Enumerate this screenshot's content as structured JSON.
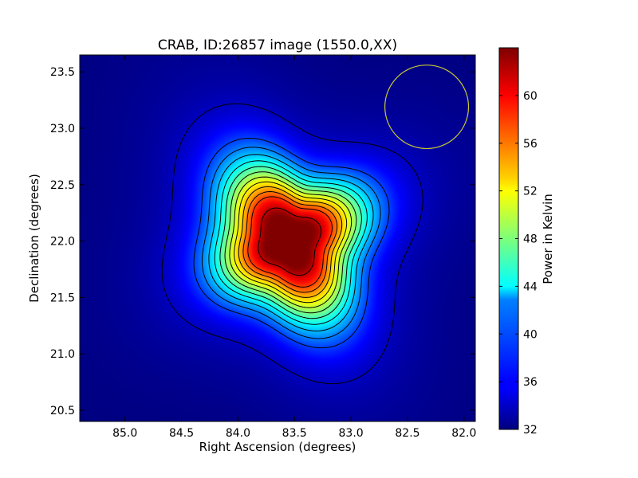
{
  "chart_data": {
    "type": "heatmap",
    "title": "CRAB, ID:26857 image (1550.0,XX)",
    "xlabel": "Right Ascension (degrees)",
    "ylabel": "Declination (degrees)",
    "xlim": [
      85.4,
      81.9
    ],
    "ylim": [
      20.4,
      23.65
    ],
    "x_ticks": [
      "85.0",
      "84.5",
      "84.0",
      "83.5",
      "83.0",
      "82.5",
      "82.0"
    ],
    "x_tick_values": [
      85.0,
      84.5,
      84.0,
      83.5,
      83.0,
      82.5,
      82.0
    ],
    "y_ticks": [
      "20.5",
      "21.0",
      "21.5",
      "22.0",
      "22.5",
      "23.0",
      "23.5"
    ],
    "y_tick_values": [
      20.5,
      21.0,
      21.5,
      22.0,
      22.5,
      23.0,
      23.5
    ],
    "colorbar": {
      "label": "Power in Kelvin",
      "range": [
        32,
        64
      ],
      "ticks": [
        "32",
        "36",
        "40",
        "44",
        "48",
        "52",
        "56",
        "60"
      ],
      "tick_values": [
        32,
        36,
        40,
        44,
        48,
        52,
        56,
        60
      ],
      "colormap": "jet"
    },
    "source": {
      "peak_ra": 83.55,
      "peak_dec": 22.0,
      "peak_value": 64,
      "background_value": 32
    },
    "contour_levels": [
      34,
      38,
      40,
      42,
      44,
      46,
      48,
      50,
      52,
      54,
      56,
      58,
      62
    ],
    "beam_circle": {
      "ra": 82.33,
      "dec": 23.19,
      "radius_deg": 0.37,
      "color": "#c8c832"
    }
  }
}
